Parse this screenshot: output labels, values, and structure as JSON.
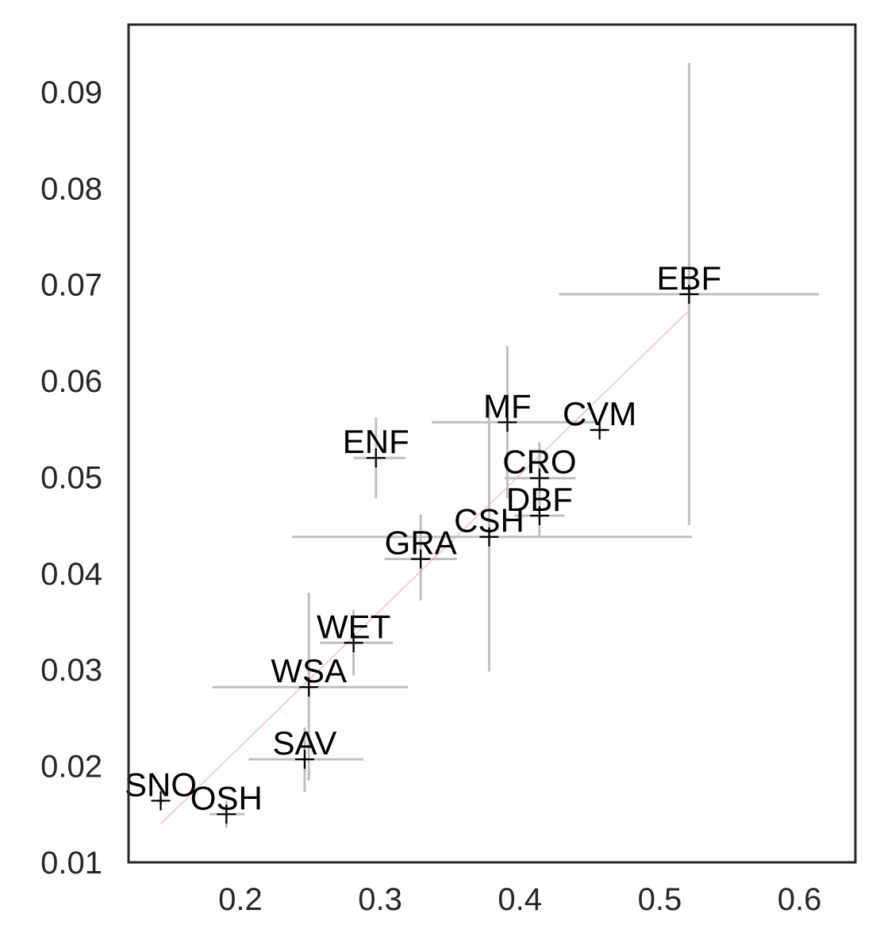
{
  "chart_data": {
    "type": "scatter",
    "title": "",
    "xlabel": "",
    "ylabel": "",
    "xlim": [
      0.12,
      0.64
    ],
    "ylim": [
      0.01,
      0.097
    ],
    "x_ticks": [
      {
        "value": 0.2,
        "label": "0.2"
      },
      {
        "value": 0.3,
        "label": "0.3"
      },
      {
        "value": 0.4,
        "label": "0.4"
      },
      {
        "value": 0.5,
        "label": "0.5"
      },
      {
        "value": 0.6,
        "label": "0.6"
      }
    ],
    "y_ticks": [
      {
        "value": 0.01,
        "label": "0.01"
      },
      {
        "value": 0.02,
        "label": "0.02"
      },
      {
        "value": 0.03,
        "label": "0.03"
      },
      {
        "value": 0.04,
        "label": "0.04"
      },
      {
        "value": 0.05,
        "label": "0.05"
      },
      {
        "value": 0.06,
        "label": "0.06"
      },
      {
        "value": 0.07,
        "label": "0.07"
      },
      {
        "value": 0.08,
        "label": "0.08"
      },
      {
        "value": 0.09,
        "label": "0.09"
      }
    ],
    "grid": false,
    "marker": "plus",
    "marker_color": "#000000",
    "errorbar_color": "#bfbfbf",
    "fit_line": {
      "color": "#f4c2bd",
      "x": [
        0.143,
        0.521
      ],
      "y": [
        0.014,
        0.0673
      ]
    },
    "points": [
      {
        "label": "EBF",
        "x": 0.521,
        "y": 0.069,
        "xerr": [
          0.428,
          0.614
        ],
        "yerr": [
          0.045,
          0.093
        ]
      },
      {
        "label": "MF",
        "x": 0.391,
        "y": 0.0557,
        "xerr": [
          0.337,
          0.455
        ],
        "yerr": [
          0.0478,
          0.0636
        ]
      },
      {
        "label": "CVM",
        "x": 0.457,
        "y": 0.0549,
        "xerr": [
          0.452,
          0.462
        ],
        "yerr": [
          0.0545,
          0.0553
        ]
      },
      {
        "label": "ENF",
        "x": 0.297,
        "y": 0.052,
        "xerr": [
          0.281,
          0.318
        ],
        "yerr": [
          0.0478,
          0.0562
        ]
      },
      {
        "label": "CRO",
        "x": 0.414,
        "y": 0.0499,
        "xerr": [
          0.389,
          0.44
        ],
        "yerr": [
          0.0462,
          0.0536
        ]
      },
      {
        "label": "DBF",
        "x": 0.414,
        "y": 0.046,
        "xerr": [
          0.396,
          0.432
        ],
        "yerr": [
          0.0437,
          0.0487
        ]
      },
      {
        "label": "CSH",
        "x": 0.378,
        "y": 0.0438,
        "xerr": [
          0.237,
          0.523
        ],
        "yerr": [
          0.0298,
          0.0578
        ]
      },
      {
        "label": "GRA",
        "x": 0.329,
        "y": 0.0415,
        "xerr": [
          0.303,
          0.355
        ],
        "yerr": [
          0.0372,
          0.0461
        ]
      },
      {
        "label": "WET",
        "x": 0.281,
        "y": 0.0328,
        "xerr": [
          0.257,
          0.309
        ],
        "yerr": [
          0.0294,
          0.0362
        ]
      },
      {
        "label": "WSA",
        "x": 0.249,
        "y": 0.0282,
        "xerr": [
          0.18,
          0.32
        ],
        "yerr": [
          0.0185,
          0.038
        ]
      },
      {
        "label": "SAV",
        "x": 0.246,
        "y": 0.0207,
        "xerr": [
          0.206,
          0.288
        ],
        "yerr": [
          0.0173,
          0.024
        ]
      },
      {
        "label": "SNO",
        "x": 0.143,
        "y": 0.0164,
        "xerr": [
          0.14,
          0.146
        ],
        "yerr": [
          0.016,
          0.0168
        ]
      },
      {
        "label": "OSH",
        "x": 0.19,
        "y": 0.015,
        "xerr": [
          0.178,
          0.203
        ],
        "yerr": [
          0.0136,
          0.0164
        ]
      }
    ]
  }
}
